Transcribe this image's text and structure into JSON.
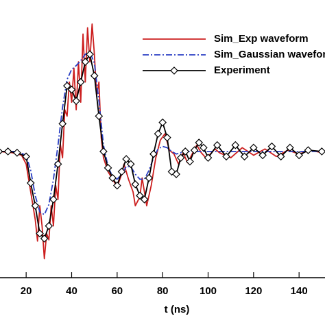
{
  "chart_data": {
    "type": "line",
    "x_label": "t (ns)",
    "xlim": [
      8.5,
      151.4
    ],
    "xticks": [
      20,
      40,
      60,
      80,
      100,
      120,
      140
    ],
    "ylim": [
      -1,
      1.2
    ],
    "legend": "upper right",
    "series": [
      {
        "name": "Sim_Exp waveform",
        "color": "#cc1f1f",
        "style": "solid",
        "marker": false,
        "x": [
          8,
          14,
          18,
          20,
          22,
          24,
          25,
          26,
          27,
          28,
          29,
          30,
          31,
          32,
          33,
          34,
          35,
          36,
          37,
          38,
          39,
          40,
          41,
          42,
          43,
          44,
          45,
          46,
          47,
          48,
          49,
          50,
          51,
          52,
          53,
          54,
          56,
          58,
          60,
          62,
          63,
          65,
          67,
          68,
          70,
          71,
          73,
          75,
          77,
          79,
          81,
          83,
          85,
          87,
          89,
          91,
          93,
          95,
          97,
          99,
          101,
          103,
          105,
          110,
          115,
          120,
          125,
          130,
          135,
          140,
          145,
          150
        ],
        "values": [
          0,
          -0.01,
          -0.03,
          -0.1,
          -0.32,
          -0.54,
          -0.71,
          -0.43,
          -0.59,
          -0.85,
          -0.65,
          -0.7,
          -0.43,
          -0.59,
          -0.27,
          -0.38,
          0.06,
          -0.05,
          0.33,
          0.28,
          0.55,
          0.39,
          0.66,
          0.33,
          0.71,
          0.39,
          0.93,
          0.55,
          0.98,
          0.71,
          1.01,
          0.77,
          0.44,
          0.55,
          0.11,
          -0.05,
          -0.16,
          -0.22,
          -0.28,
          -0.18,
          -0.1,
          -0.22,
          -0.32,
          -0.43,
          -0.36,
          -0.21,
          -0.43,
          -0.27,
          -0.05,
          0.09,
          0.14,
          0.01,
          -0.02,
          -0.1,
          -0.01,
          -0.09,
          -0.02,
          0.05,
          -0.01,
          -0.05,
          -0.02,
          0.02,
          -0.01,
          -0.05,
          0.03,
          -0.03,
          0.02,
          -0.04,
          0.01,
          -0.02,
          0.01,
          -0.01
        ]
      },
      {
        "name": "Sim_Gaussian waveform",
        "color": "#2a3fc4",
        "style": "dashdot",
        "marker": false,
        "x": [
          8,
          16,
          20,
          22,
          24,
          26,
          28,
          30,
          32,
          34,
          36,
          38,
          40,
          42,
          44,
          46,
          48,
          50,
          52,
          54,
          56,
          58,
          60,
          62,
          64,
          66,
          68,
          70,
          72,
          74,
          76,
          78,
          80,
          82,
          84,
          86,
          88,
          90,
          100,
          150
        ],
        "values": [
          0,
          0,
          -0.03,
          -0.15,
          -0.35,
          -0.48,
          -0.5,
          -0.42,
          -0.22,
          0.05,
          0.35,
          0.57,
          0.65,
          0.68,
          0.72,
          0.77,
          0.79,
          0.7,
          0.4,
          0.05,
          -0.12,
          -0.2,
          -0.22,
          -0.18,
          -0.12,
          -0.12,
          -0.18,
          -0.22,
          -0.22,
          -0.15,
          -0.05,
          0.02,
          0.04,
          0.03,
          0,
          -0.02,
          -0.01,
          0,
          0,
          0
        ]
      },
      {
        "name": "Experiment",
        "color": "#000000",
        "style": "solid",
        "marker": true,
        "x": [
          8,
          12,
          16,
          20,
          22,
          24,
          26,
          28,
          30,
          32,
          34,
          36,
          38,
          40,
          42,
          44,
          46,
          48,
          50,
          52,
          54,
          56,
          58,
          60,
          62,
          64,
          66,
          68,
          70,
          72,
          74,
          76,
          78,
          80,
          82,
          84,
          86,
          88,
          90,
          92,
          94,
          96,
          98,
          100,
          104,
          108,
          112,
          116,
          120,
          124,
          128,
          132,
          136,
          140,
          144,
          150
        ],
        "values": [
          0,
          0,
          -0.01,
          -0.04,
          -0.25,
          -0.43,
          -0.65,
          -0.69,
          -0.59,
          -0.38,
          -0.1,
          0.22,
          0.52,
          0.49,
          0.4,
          0.55,
          0.71,
          0.77,
          0.6,
          0.28,
          0,
          -0.13,
          -0.21,
          -0.27,
          -0.16,
          -0.06,
          -0.1,
          -0.26,
          -0.35,
          -0.38,
          -0.21,
          -0.02,
          0.14,
          0.23,
          0.11,
          -0.16,
          -0.18,
          -0.05,
          0,
          -0.08,
          0.01,
          0.07,
          0.03,
          -0.05,
          0.05,
          -0.04,
          0.05,
          -0.04,
          0.03,
          -0.03,
          0.04,
          -0.04,
          0.03,
          -0.03,
          0.01,
          0
        ]
      }
    ]
  }
}
